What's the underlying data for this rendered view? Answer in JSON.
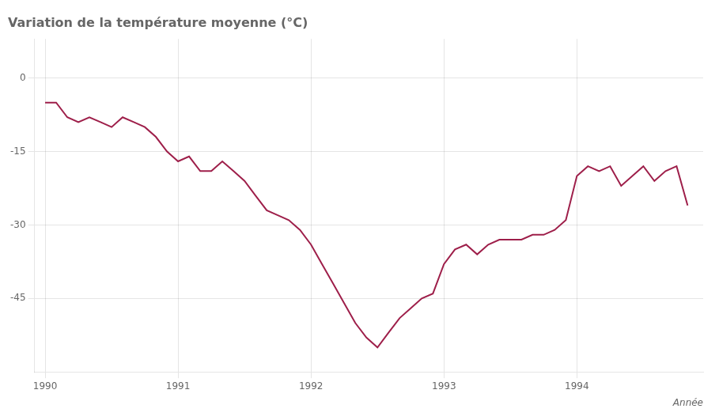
{
  "chart_data": {
    "type": "line",
    "title": "Variation de la température moyenne (°C)",
    "xlabel": "Année",
    "color": "#9e1f4a",
    "grid": true,
    "xlim": [
      1989.92,
      1994.95
    ],
    "xticks": [
      1990.0,
      1991.0,
      1992.0,
      1993.0,
      1994.0
    ],
    "ylim": [
      -60,
      8
    ],
    "yticks": [
      0,
      -15,
      -30,
      -45
    ],
    "x": [
      1990.0,
      1990.083,
      1990.167,
      1990.25,
      1990.333,
      1990.417,
      1990.5,
      1990.583,
      1990.667,
      1990.75,
      1990.833,
      1990.917,
      1991.0,
      1991.083,
      1991.167,
      1991.25,
      1991.333,
      1991.417,
      1991.5,
      1991.583,
      1991.667,
      1991.75,
      1991.833,
      1991.917,
      1992.0,
      1992.083,
      1992.167,
      1992.25,
      1992.333,
      1992.417,
      1992.5,
      1992.583,
      1992.667,
      1992.75,
      1992.833,
      1992.917,
      1993.0,
      1993.083,
      1993.167,
      1993.25,
      1993.333,
      1993.417,
      1993.5,
      1993.583,
      1993.667,
      1993.75,
      1993.833,
      1993.917,
      1994.0,
      1994.083,
      1994.167,
      1994.25,
      1994.333,
      1994.417,
      1994.5,
      1994.583,
      1994.667,
      1994.75,
      1994.833
    ],
    "values": [
      -5,
      -5,
      -8,
      -9,
      -8,
      -9,
      -10,
      -8,
      -9,
      -10,
      -12,
      -15,
      -17,
      -16,
      -19,
      -19,
      -17,
      -19,
      -21,
      -24,
      -27,
      -28,
      -29,
      -31,
      -34,
      -38,
      -42,
      -46,
      -50,
      -53,
      -55,
      -52,
      -49,
      -47,
      -45,
      -44,
      -38,
      -35,
      -34,
      -36,
      -34,
      -33,
      -33,
      -33,
      -32,
      -32,
      -31,
      -29,
      -20,
      -18,
      -19,
      -18,
      -22,
      -20,
      -18,
      -21,
      -19,
      -18,
      -26
    ]
  }
}
